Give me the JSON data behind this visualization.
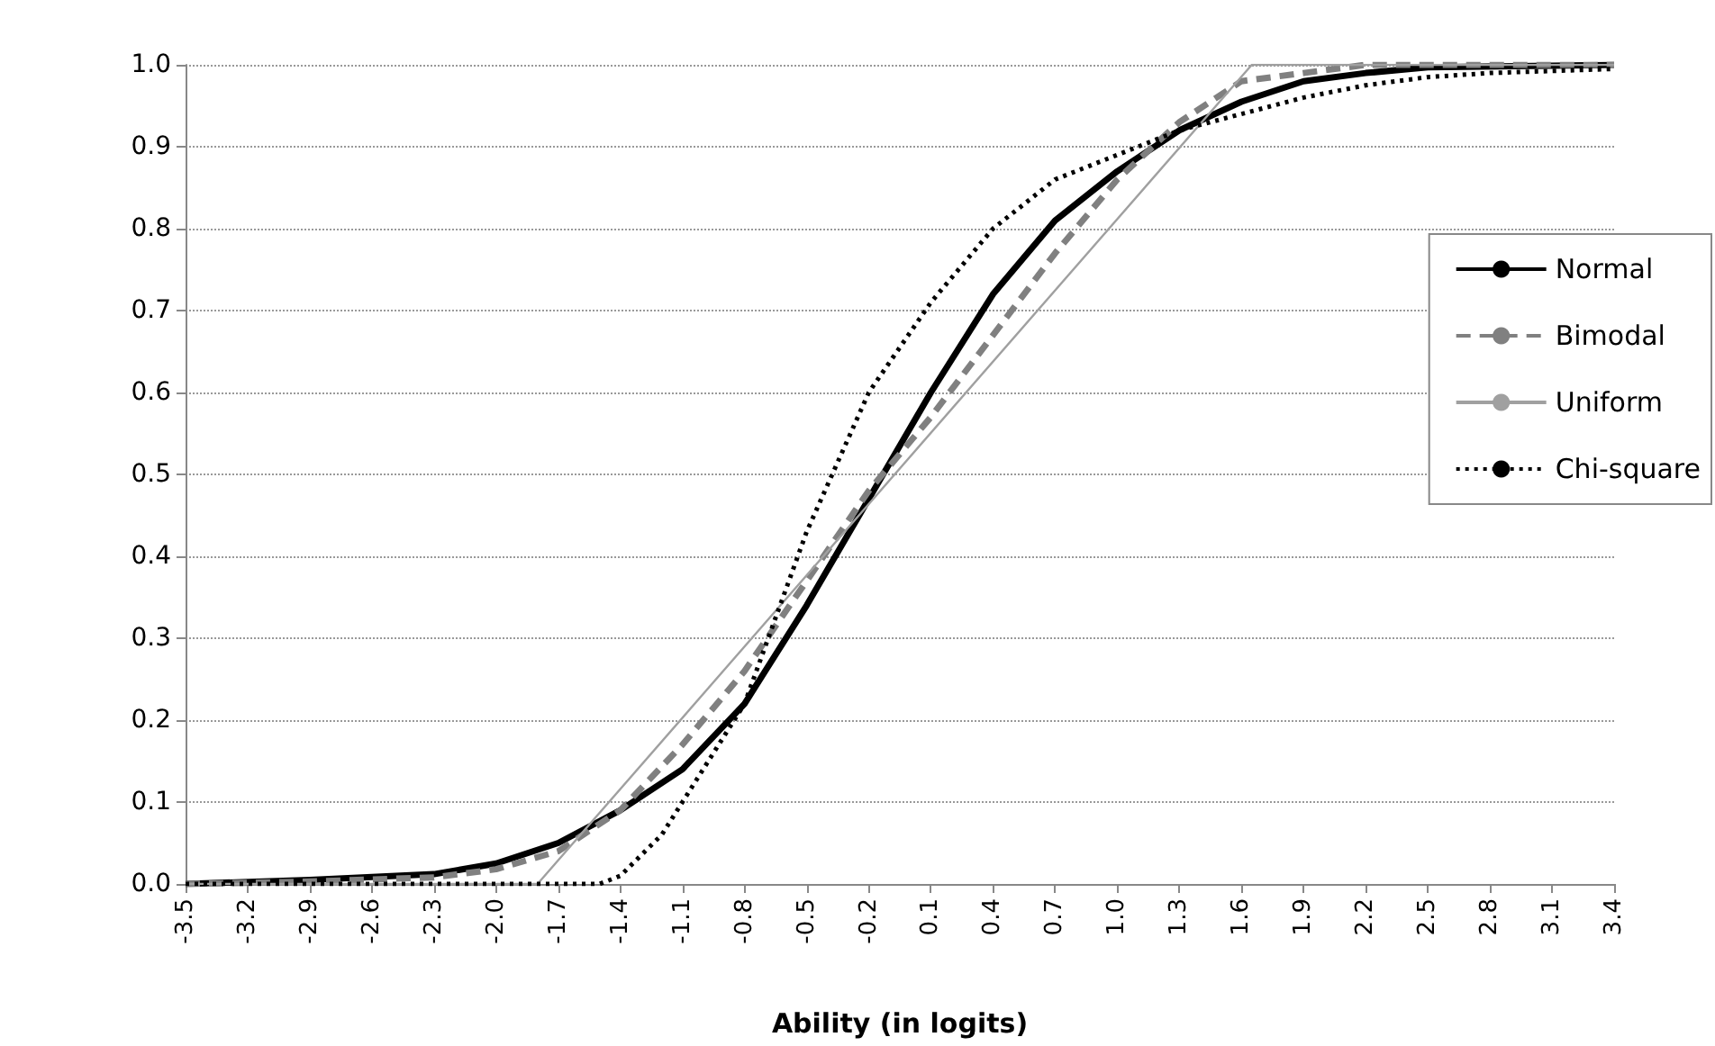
{
  "chart_data": {
    "type": "line",
    "xlabel": "Ability (in logits)",
    "xlim": [
      -3.5,
      3.4
    ],
    "xticks": [
      {
        "value": -3.5,
        "label": "-3.5"
      },
      {
        "value": -3.2,
        "label": "-3.2"
      },
      {
        "value": -2.9,
        "label": "-2.9"
      },
      {
        "value": -2.6,
        "label": "-2.6"
      },
      {
        "value": -2.3,
        "label": "-2.3"
      },
      {
        "value": -2,
        "label": "-2.0"
      },
      {
        "value": -1.7,
        "label": "-1.7"
      },
      {
        "value": -1.4,
        "label": "-1.4"
      },
      {
        "value": -1.1,
        "label": "-1.1"
      },
      {
        "value": -0.8,
        "label": "-0.8"
      },
      {
        "value": -0.5,
        "label": "-0.5"
      },
      {
        "value": -0.2,
        "label": "-0.2"
      },
      {
        "value": 0.1,
        "label": "0.1"
      },
      {
        "value": 0.4,
        "label": "0.4"
      },
      {
        "value": 0.7,
        "label": "0.7"
      },
      {
        "value": 1,
        "label": "1.0"
      },
      {
        "value": 1.3,
        "label": "1.3"
      },
      {
        "value": 1.6,
        "label": "1.6"
      },
      {
        "value": 1.9,
        "label": "1.9"
      },
      {
        "value": 2.2,
        "label": "2.2"
      },
      {
        "value": 2.5,
        "label": "2.5"
      },
      {
        "value": 2.8,
        "label": "2.8"
      },
      {
        "value": 3.1,
        "label": "3.1"
      },
      {
        "value": 3.4,
        "label": "3.4"
      }
    ],
    "ylim": [
      0,
      1
    ],
    "yticks": [
      {
        "value": 0,
        "label": "0.0"
      },
      0.1,
      0.2,
      0.3,
      0.4,
      0.5,
      0.6,
      0.7,
      0.8,
      0.9,
      {
        "value": 1,
        "label": "1.0"
      }
    ],
    "grid": "y",
    "legend": "right",
    "marker": "none",
    "series": [
      {
        "name": "Normal",
        "color": "#000000",
        "line_style": "solid",
        "x": [
          -3.5,
          -2.9,
          -2.3,
          -2.0,
          -1.7,
          -1.4,
          -1.1,
          -0.8,
          -0.5,
          -0.2,
          0.1,
          0.4,
          0.7,
          1.0,
          1.3,
          1.6,
          1.9,
          2.2,
          2.5,
          3.4
        ],
        "values": [
          0,
          0.005,
          0.012,
          0.025,
          0.05,
          0.09,
          0.14,
          0.22,
          0.34,
          0.47,
          0.6,
          0.72,
          0.81,
          0.87,
          0.92,
          0.955,
          0.98,
          0.99,
          0.997,
          1
        ]
      },
      {
        "name": "Bimodal",
        "color": "#808080",
        "line_style": "dashed",
        "x": [
          -3.5,
          -2.9,
          -2.3,
          -2.0,
          -1.7,
          -1.4,
          -1.1,
          -0.8,
          -0.5,
          -0.2,
          0.1,
          0.4,
          0.7,
          1.0,
          1.3,
          1.6,
          1.9,
          2.2,
          3.4
        ],
        "values": [
          0,
          0.003,
          0.008,
          0.018,
          0.04,
          0.09,
          0.17,
          0.26,
          0.37,
          0.48,
          0.57,
          0.67,
          0.77,
          0.86,
          0.93,
          0.98,
          0.99,
          1,
          1
        ]
      },
      {
        "name": "Uniform",
        "color": "#a0a0a0",
        "line_style": "solid",
        "x": [
          -3.5,
          -1.8,
          1.65,
          3.4
        ],
        "values": [
          0,
          0,
          1,
          1
        ]
      },
      {
        "name": "Chi-square",
        "color": "#000000",
        "line_style": "dotted",
        "x": [
          -3.5,
          -1.5,
          -1.4,
          -1.2,
          -1.1,
          -0.8,
          -0.5,
          -0.2,
          0.1,
          0.4,
          0.7,
          1.0,
          1.3,
          1.6,
          1.9,
          2.2,
          2.5,
          2.8,
          3.4
        ],
        "values": [
          0,
          0,
          0.01,
          0.06,
          0.1,
          0.22,
          0.43,
          0.6,
          0.71,
          0.8,
          0.86,
          0.89,
          0.92,
          0.94,
          0.96,
          0.975,
          0.985,
          0.99,
          0.995
        ]
      }
    ]
  }
}
